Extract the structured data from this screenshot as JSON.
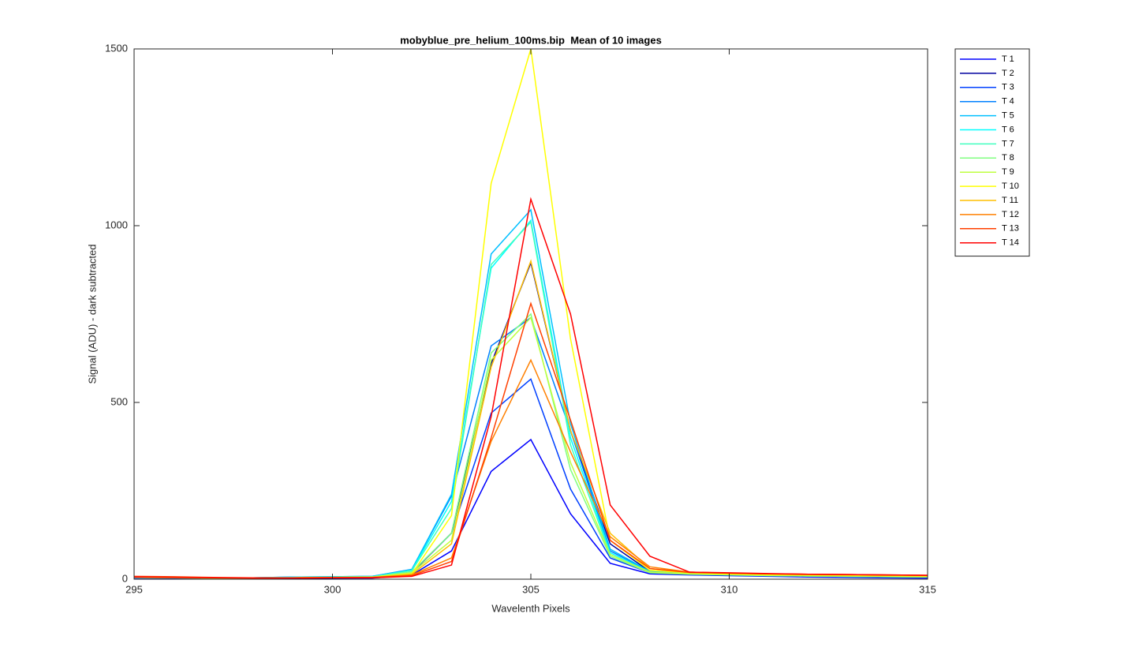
{
  "chart_data": {
    "type": "line",
    "title": "mobyblue_pre_helium_100ms.bip  Mean of 10 images",
    "x_label": "Wavelenth Pixels",
    "y_label": "Signal (ADU) - dark subtracted",
    "x": [
      295,
      296,
      297,
      298,
      299,
      300,
      301,
      302,
      303,
      304,
      305,
      306,
      307,
      308,
      309,
      310,
      311,
      312,
      313,
      314,
      315
    ],
    "xlim": [
      295,
      315
    ],
    "xticks": [
      295,
      300,
      305,
      310,
      315
    ],
    "ylim": [
      0,
      1500
    ],
    "yticks": [
      0,
      500,
      1000,
      1500
    ],
    "grid": false,
    "legend": "outside-right",
    "series": [
      {
        "name": "T 1",
        "color": "#0000ff",
        "values": [
          3,
          3,
          2,
          2,
          2,
          3,
          3,
          12,
          80,
          305,
          395,
          185,
          45,
          15,
          12,
          10,
          8,
          6,
          5,
          4,
          3
        ]
      },
      {
        "name": "T 2",
        "color": "#00009f",
        "values": [
          4,
          3,
          2,
          2,
          3,
          3,
          4,
          18,
          130,
          610,
          895,
          420,
          100,
          22,
          14,
          12,
          10,
          8,
          7,
          6,
          5
        ]
      },
      {
        "name": "T 3",
        "color": "#0040ff",
        "values": [
          4,
          3,
          3,
          3,
          4,
          4,
          5,
          20,
          130,
          470,
          566,
          255,
          60,
          18,
          13,
          11,
          9,
          8,
          7,
          6,
          5
        ]
      },
      {
        "name": "T 4",
        "color": "#0080ff",
        "values": [
          5,
          4,
          4,
          4,
          6,
          7,
          8,
          28,
          235,
          660,
          740,
          420,
          80,
          22,
          15,
          13,
          11,
          9,
          8,
          7,
          6
        ]
      },
      {
        "name": "T 5",
        "color": "#00bfff",
        "values": [
          5,
          4,
          4,
          4,
          6,
          7,
          8,
          27,
          240,
          920,
          1045,
          440,
          85,
          22,
          15,
          13,
          11,
          9,
          8,
          7,
          6
        ]
      },
      {
        "name": "T 6",
        "color": "#00ffff",
        "values": [
          5,
          4,
          4,
          4,
          5,
          6,
          7,
          25,
          220,
          880,
          1015,
          400,
          75,
          20,
          15,
          13,
          11,
          9,
          8,
          7,
          6
        ]
      },
      {
        "name": "T 7",
        "color": "#40ffbf",
        "values": [
          5,
          4,
          4,
          4,
          5,
          6,
          7,
          24,
          200,
          890,
          1010,
          380,
          70,
          20,
          15,
          13,
          11,
          9,
          8,
          7,
          6
        ]
      },
      {
        "name": "T 8",
        "color": "#80ff80",
        "values": [
          5,
          4,
          3,
          3,
          4,
          5,
          6,
          20,
          130,
          640,
          750,
          310,
          65,
          18,
          14,
          12,
          10,
          9,
          8,
          7,
          6
        ]
      },
      {
        "name": "T 9",
        "color": "#bfff40",
        "values": [
          5,
          4,
          3,
          3,
          4,
          5,
          6,
          18,
          110,
          620,
          740,
          330,
          70,
          20,
          15,
          13,
          11,
          10,
          9,
          8,
          7
        ]
      },
      {
        "name": "T 10",
        "color": "#ffff00",
        "values": [
          6,
          5,
          4,
          4,
          4,
          5,
          6,
          15,
          180,
          1120,
          1500,
          680,
          110,
          25,
          18,
          15,
          13,
          12,
          11,
          10,
          9
        ]
      },
      {
        "name": "T 11",
        "color": "#ffbf00",
        "values": [
          6,
          5,
          4,
          4,
          4,
          5,
          5,
          14,
          100,
          600,
          900,
          420,
          130,
          30,
          20,
          17,
          15,
          13,
          12,
          11,
          10
        ]
      },
      {
        "name": "T 12",
        "color": "#ff8000",
        "values": [
          7,
          6,
          4,
          4,
          4,
          5,
          5,
          12,
          60,
          390,
          620,
          360,
          120,
          35,
          20,
          17,
          15,
          14,
          13,
          12,
          11
        ]
      },
      {
        "name": "T 13",
        "color": "#ff4000",
        "values": [
          8,
          7,
          5,
          4,
          4,
          4,
          5,
          10,
          50,
          400,
          780,
          450,
          110,
          30,
          19,
          17,
          15,
          14,
          13,
          12,
          11
        ]
      },
      {
        "name": "T 14",
        "color": "#ff0000",
        "values": [
          6,
          5,
          4,
          3,
          3,
          4,
          4,
          8,
          40,
          460,
          1075,
          750,
          210,
          65,
          20,
          18,
          16,
          14,
          13,
          12,
          11
        ]
      }
    ]
  }
}
